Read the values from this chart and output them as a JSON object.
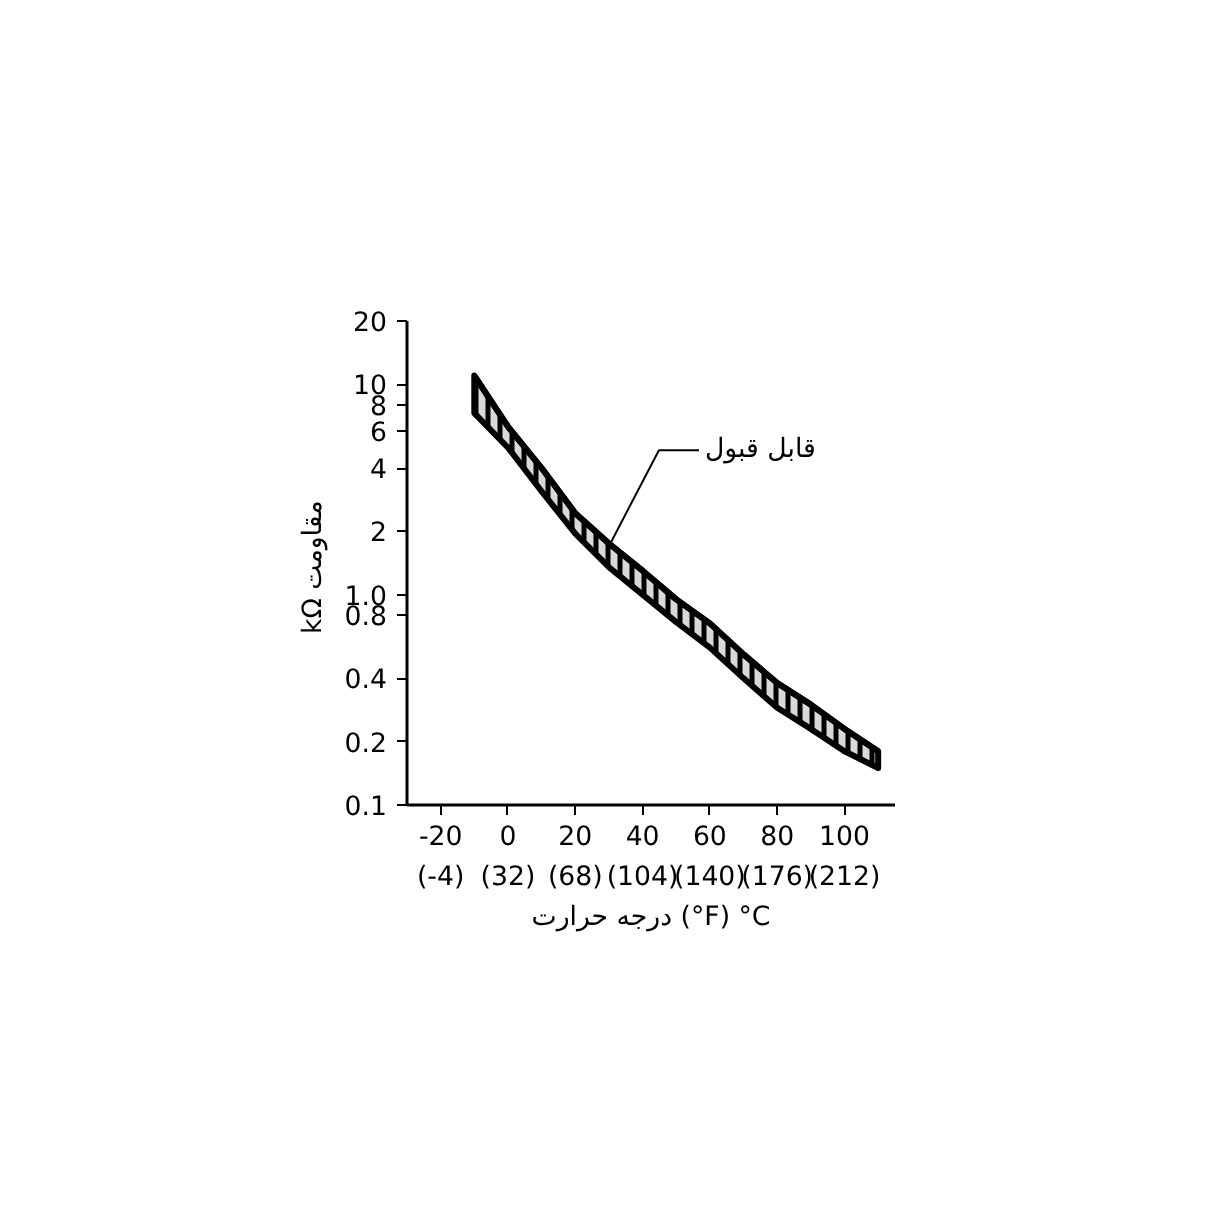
{
  "chart_data": {
    "type": "line",
    "xlabel": "درجه حرارت (°F) °C",
    "ylabel": "kΩ  مقاومت",
    "log": "y",
    "x": [
      -10,
      0,
      10,
      20,
      30,
      40,
      50,
      60,
      70,
      80,
      90,
      100,
      110
    ],
    "series": [
      {
        "color": "#000000",
        "values": [
          11,
          6.3,
          4.0,
          2.44,
          1.75,
          1.3,
          0.95,
          0.73,
          0.52,
          0.38,
          0.3,
          0.23,
          0.18
        ],
        "lower": [
          7.3,
          5.0,
          3.1,
          1.95,
          1.35,
          1.0,
          0.74,
          0.56,
          0.4,
          0.29,
          0.23,
          0.18,
          0.15
        ],
        "upper": [
          11,
          6.3,
          4.0,
          2.44,
          1.75,
          1.3,
          0.95,
          0.73,
          0.52,
          0.38,
          0.3,
          0.23,
          0.18
        ]
      }
    ],
    "annotations": [
      {
        "text": "قابل قبول",
        "x": 30,
        "y": 1.7
      }
    ],
    "xlim": [
      -30,
      115
    ],
    "xticks": [
      -20,
      0,
      20,
      40,
      60,
      80,
      100
    ],
    "x2lim": [
      -22,
      239
    ],
    "x2ticks": [
      {
        "value": -4,
        "label": "(-4)"
      },
      {
        "value": 32,
        "label": "(32)"
      },
      {
        "value": 68,
        "label": "(68)"
      },
      {
        "value": 104,
        "label": "(104)"
      },
      {
        "value": 140,
        "label": "(140)"
      },
      {
        "value": 176,
        "label": "(176)"
      },
      {
        "value": 212,
        "label": "(212)"
      }
    ],
    "ylim": [
      0.1,
      20
    ],
    "yticks": [
      0.1,
      0.2,
      0.4,
      {
        "value": 0.8,
        "label": "0.8"
      },
      {
        "value": 1,
        "label": "1.0"
      },
      2,
      4,
      6,
      8,
      10,
      20
    ],
    "grid": false,
    "marker": "none",
    "line_style": "solid"
  }
}
